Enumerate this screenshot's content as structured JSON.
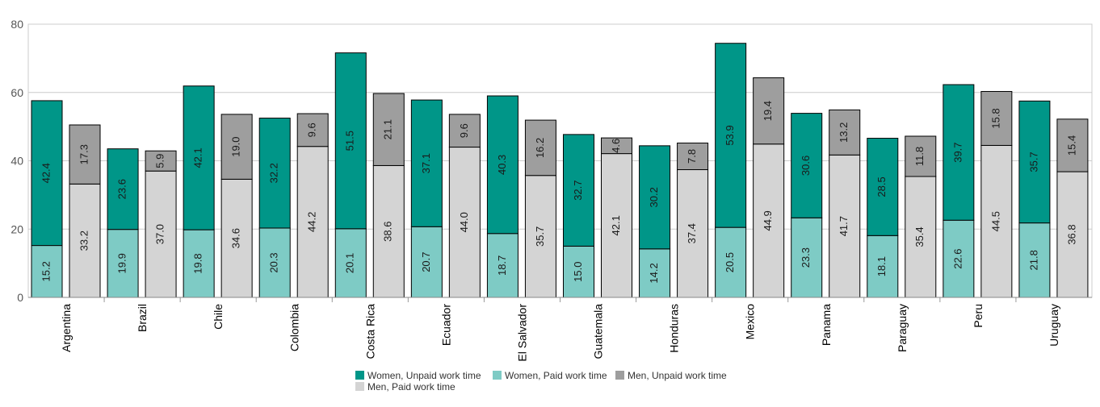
{
  "chart_data": {
    "type": "bar",
    "stacked": true,
    "layout": "grouped stacked bars (women stack, men stack per country)",
    "categories": [
      "Argentina",
      "Brazil",
      "Chile",
      "Colombia",
      "Costa Rica",
      "Ecuador",
      "El Salvador",
      "Guatemala",
      "Honduras",
      "Mexico",
      "Panama",
      "Paraguay",
      "Peru",
      "Uruguay"
    ],
    "series": [
      {
        "name": "Women, Unpaid work time",
        "group": "women",
        "color": "#009688",
        "values": [
          42.4,
          23.6,
          42.1,
          32.2,
          51.5,
          37.1,
          40.3,
          32.7,
          30.2,
          53.9,
          30.6,
          28.5,
          39.7,
          35.7
        ]
      },
      {
        "name": "Women, Paid work time",
        "group": "women",
        "color": "#7ECBC5",
        "values": [
          15.2,
          19.9,
          19.8,
          20.3,
          20.1,
          20.7,
          18.7,
          15.0,
          14.2,
          20.5,
          23.3,
          18.1,
          22.6,
          21.8
        ]
      },
      {
        "name": "Men, Unpaid work time",
        "group": "men",
        "color": "#9E9E9E",
        "values": [
          17.3,
          5.9,
          19.0,
          9.6,
          21.1,
          9.6,
          16.2,
          4.6,
          7.8,
          19.4,
          13.2,
          11.8,
          15.8,
          15.4
        ]
      },
      {
        "name": "Men, Paid work time",
        "group": "men",
        "color": "#D4D4D4",
        "values": [
          33.2,
          37.0,
          34.6,
          44.2,
          38.6,
          44.0,
          35.7,
          42.1,
          37.4,
          44.9,
          41.7,
          35.4,
          44.5,
          36.8
        ]
      }
    ],
    "y_ticks": [
      "0",
      "20",
      "40",
      "60",
      "80"
    ],
    "ylim": [
      0,
      80
    ],
    "xlabel": "",
    "ylabel": "",
    "title": "",
    "grid": true,
    "legend_position": "bottom-center"
  }
}
